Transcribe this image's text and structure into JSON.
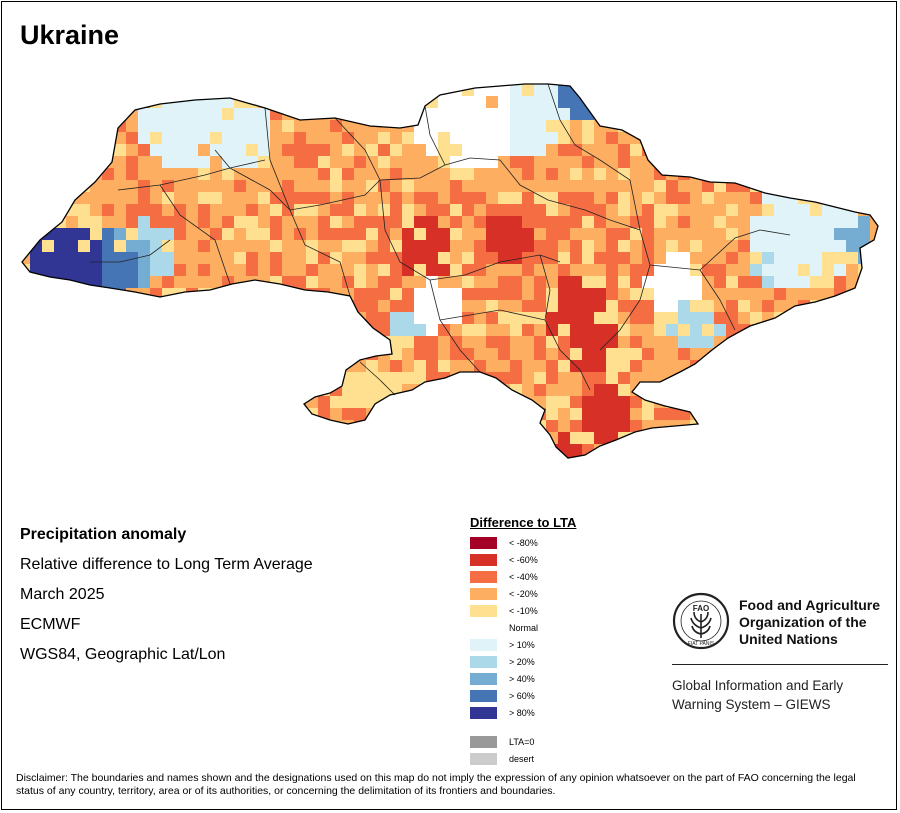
{
  "title": "Ukraine",
  "info": {
    "heading": "Precipitation anomaly",
    "line1": "Relative difference to Long Term Average",
    "line2": "March 2025",
    "line3": "ECMWF",
    "line4": "WGS84, Geographic Lat/Lon"
  },
  "legend": {
    "title": "Difference to LTA",
    "items": [
      {
        "label": "< -80%",
        "color": "#a50026"
      },
      {
        "label": "< -60%",
        "color": "#d73027"
      },
      {
        "label": "< -40%",
        "color": "#f46d43"
      },
      {
        "label": "< -20%",
        "color": "#fdae61"
      },
      {
        "label": "< -10%",
        "color": "#fee090"
      },
      {
        "label": "Normal",
        "color": "#ffffff"
      },
      {
        "label": "> 10%",
        "color": "#e0f3f8"
      },
      {
        "label": "> 20%",
        "color": "#abd9e9"
      },
      {
        "label": "> 40%",
        "color": "#74add1"
      },
      {
        "label": "> 60%",
        "color": "#4575b4"
      },
      {
        "label": "> 80%",
        "color": "#313695"
      }
    ],
    "extra": [
      {
        "label": "LTA=0",
        "color": "#999999"
      },
      {
        "label": "desert",
        "color": "#cccccc"
      }
    ]
  },
  "fao": {
    "logo_text": "FAO",
    "logo_motto": "FIAT PANIS",
    "name_line1": "Food and Agriculture",
    "name_line2": "Organization of the",
    "name_line3": "United Nations",
    "giews_line1": "Global Information and Early",
    "giews_line2": "Warning System – GIEWS"
  },
  "disclaimer": "Disclaimer: The boundaries and names shown and the designations used on this map do not imply the expression of any opinion whatsoever on the part of FAO concerning the legal status of any country, territory, area or of its authorities, or concerning the delimitation of its frontiers and boundaries."
}
